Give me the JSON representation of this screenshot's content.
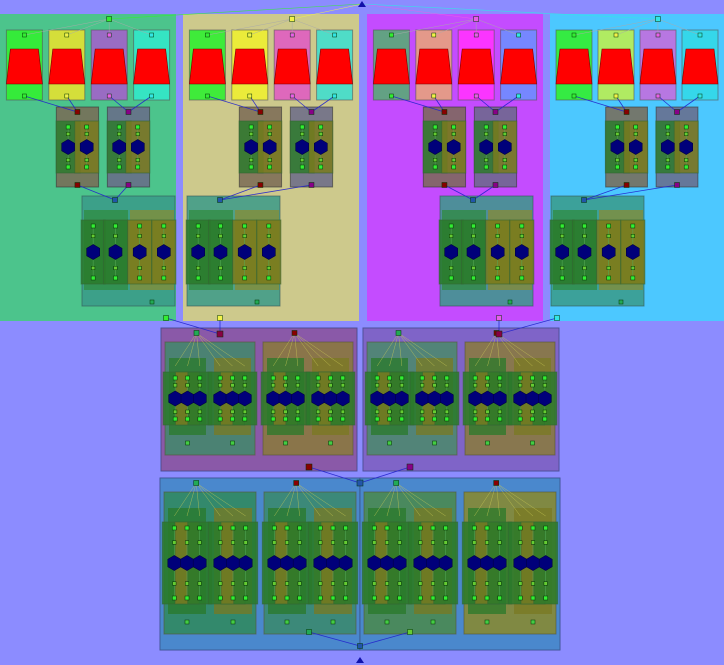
{
  "colors": {
    "background": "#8c8cff",
    "green": "#33ee33",
    "yellow": "#f2f24a",
    "magenta": "#e95ee9",
    "cyan": "#33e6e6",
    "trapezoid": "#ff0000",
    "hexagon": "#00007a",
    "edge": "#2222cc"
  },
  "diagram": {
    "top_groups": [
      {
        "id": "green",
        "color": "#33ee33"
      },
      {
        "id": "yellow",
        "color": "#f2f24a"
      },
      {
        "id": "magenta",
        "color": "#e95ee9"
      },
      {
        "id": "cyan",
        "color": "#33e6e6"
      }
    ],
    "bottom_blocks": [
      {
        "id": "middle"
      },
      {
        "id": "bottom"
      }
    ]
  }
}
